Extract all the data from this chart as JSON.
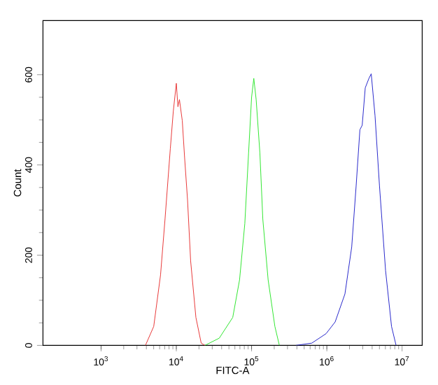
{
  "chart_data": {
    "type": "line",
    "xlabel": "FITC-A",
    "ylabel": "Count",
    "log": "x",
    "xlim": [
      169,
      18500000
    ],
    "ylim": [
      0,
      720
    ],
    "xticks": [
      {
        "value": 1000,
        "label": "10$^{3}$"
      },
      {
        "value": 10000,
        "label": "10$^{4}$"
      },
      {
        "value": 100000,
        "label": "10$^{5}$"
      },
      {
        "value": 1000000,
        "label": "10$^{6}$"
      },
      {
        "value": 10000000,
        "label": "10$^{7}$"
      }
    ],
    "yticks": [
      0,
      200,
      400,
      600
    ],
    "grid": false,
    "marker": "none",
    "line_style": "solid",
    "series": [
      {
        "color": "#e83a3a",
        "x": [
          3890,
          5010,
          6170,
          7080,
          8320,
          9120,
          10000,
          10500,
          11000,
          12000,
          12900,
          14100,
          15500,
          18200,
          21400,
          24000
        ],
        "values": [
          0,
          42,
          156,
          280,
          436,
          519,
          581,
          529,
          545,
          498,
          415,
          322,
          187,
          62,
          5,
          0
        ]
      },
      {
        "color": "#33e633",
        "x": [
          24000,
          37200,
          56200,
          69200,
          81300,
          91200,
          100000,
          107000,
          115000,
          129000,
          141000,
          166000,
          204000,
          234000
        ],
        "values": [
          0,
          16,
          62,
          145,
          270,
          426,
          550,
          592,
          545,
          426,
          280,
          145,
          42,
          0
        ]
      },
      {
        "color": "#2a2acc",
        "x": [
          389000,
          631000,
          977000,
          1290000,
          1740000,
          2140000,
          2450000,
          2750000,
          2950000,
          3240000,
          3630000,
          3890000,
          4370000,
          5010000,
          6030000,
          7240000,
          8320000
        ],
        "values": [
          0,
          5,
          26,
          52,
          114,
          218,
          353,
          478,
          488,
          571,
          592,
          602,
          509,
          353,
          166,
          42,
          0
        ]
      }
    ]
  }
}
